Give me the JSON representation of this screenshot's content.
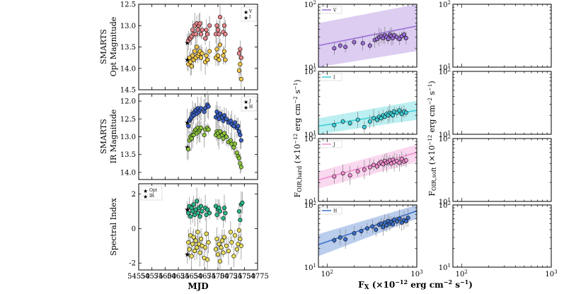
{
  "chart_data": [
    {
      "type": "scatter",
      "id": "opt-mag",
      "title": "",
      "ylabel_lines": [
        "SMARTS",
        "Opt Magnitude"
      ],
      "xlabel": "",
      "xlim": [
        54550,
        54775
      ],
      "ylim": [
        14.5,
        12.5
      ],
      "yticks": [
        12.5,
        13.0,
        13.5,
        14.0,
        14.5
      ],
      "legend": {
        "position": "top-right",
        "entries": [
          "V",
          "I"
        ]
      },
      "series": [
        {
          "name": "V",
          "color": "#e8858a",
          "x": [
            54642,
            54644,
            54646,
            54648,
            54650,
            54652,
            54654,
            54656,
            54658,
            54660,
            54662,
            54664,
            54666,
            54668,
            54670,
            54676,
            54678,
            54680,
            54684,
            54696,
            54698,
            54700,
            54702,
            54704,
            54710,
            54712,
            54714,
            54740,
            54742,
            54744
          ],
          "y": [
            13.4,
            13.35,
            13.3,
            13.3,
            13.25,
            13.1,
            13.2,
            13.0,
            13.2,
            12.95,
            13.1,
            13.0,
            12.95,
            13.2,
            13.1,
            13.3,
            13.1,
            13.2,
            13.0,
            13.2,
            13.0,
            13.1,
            13.2,
            12.8,
            13.15,
            13.0,
            13.2,
            13.65,
            13.55,
            13.75
          ]
        },
        {
          "name": "I",
          "color": "#f0c64a",
          "x": [
            54642,
            54644,
            54646,
            54648,
            54650,
            54652,
            54654,
            54656,
            54658,
            54660,
            54662,
            54664,
            54666,
            54668,
            54670,
            54676,
            54678,
            54680,
            54684,
            54696,
            54698,
            54700,
            54702,
            54704,
            54710,
            54712,
            54714,
            54740,
            54742,
            54744
          ],
          "y": [
            13.8,
            13.9,
            13.75,
            13.85,
            13.95,
            13.7,
            13.8,
            13.6,
            13.75,
            13.5,
            13.7,
            13.65,
            13.6,
            13.75,
            13.65,
            13.85,
            13.7,
            13.8,
            13.6,
            13.75,
            13.55,
            13.7,
            13.8,
            13.45,
            13.7,
            13.6,
            13.8,
            14.05,
            13.9,
            14.25
          ]
        }
      ]
    },
    {
      "type": "scatter",
      "id": "ir-mag",
      "ylabel_lines": [
        "SMARTS",
        "IR Magnitude"
      ],
      "xlim": [
        54550,
        54775
      ],
      "ylim": [
        14.2,
        11.8
      ],
      "yticks": [
        12.0,
        12.5,
        13.0,
        13.5,
        14.0
      ],
      "legend": {
        "position": "top-right",
        "entries": [
          "J",
          "H"
        ]
      },
      "series": [
        {
          "name": "H",
          "color": "#3a5fc0",
          "x": [
            54642,
            54644,
            54646,
            54648,
            54650,
            54652,
            54654,
            54656,
            54658,
            54660,
            54662,
            54664,
            54666,
            54668,
            54674,
            54676,
            54680,
            54682,
            54696,
            54698,
            54700,
            54702,
            54704,
            54708,
            54710,
            54712,
            54716,
            54720,
            54724,
            54726,
            54730,
            54732,
            54736,
            54738,
            54740,
            54742,
            54744
          ],
          "y": [
            12.6,
            12.7,
            12.55,
            12.5,
            12.45,
            12.35,
            12.4,
            12.3,
            12.25,
            12.35,
            12.2,
            12.3,
            12.25,
            12.2,
            12.3,
            12.2,
            12.1,
            12.15,
            12.45,
            12.3,
            12.4,
            12.5,
            12.35,
            12.45,
            12.55,
            12.4,
            12.5,
            12.6,
            12.55,
            12.65,
            12.7,
            12.6,
            12.75,
            12.7,
            12.85,
            12.95,
            13.1
          ]
        },
        {
          "name": "J",
          "color": "#8dc63f",
          "x": [
            54642,
            54644,
            54646,
            54648,
            54650,
            54652,
            54654,
            54656,
            54658,
            54660,
            54662,
            54664,
            54666,
            54668,
            54674,
            54676,
            54680,
            54682,
            54696,
            54698,
            54700,
            54702,
            54704,
            54708,
            54710,
            54712,
            54716,
            54720,
            54724,
            54726,
            54730,
            54732,
            54736,
            54738,
            54740,
            54742,
            54744
          ],
          "y": [
            13.3,
            13.35,
            13.1,
            13.0,
            13.05,
            12.95,
            12.95,
            12.85,
            12.8,
            12.9,
            12.75,
            12.85,
            12.8,
            12.75,
            12.95,
            12.8,
            12.75,
            12.8,
            12.95,
            12.85,
            12.9,
            13.0,
            12.85,
            12.95,
            13.05,
            12.9,
            13.0,
            13.15,
            13.1,
            13.2,
            13.3,
            13.2,
            13.45,
            13.55,
            13.6,
            13.75,
            13.85
          ]
        }
      ]
    },
    {
      "type": "scatter",
      "id": "spectral-index",
      "ylabel_lines": [
        "Spectral Index"
      ],
      "xlabel": "MJD",
      "xlim": [
        54550,
        54775
      ],
      "ylim": [
        -2.4,
        2.6
      ],
      "yticks": [
        -2,
        0,
        2
      ],
      "xticks": [
        54550,
        54575,
        54600,
        54625,
        54650,
        54675,
        54700,
        54725,
        54750,
        54775
      ],
      "legend": {
        "position": "top-left",
        "entries": [
          "Opt",
          "IR"
        ]
      },
      "series": [
        {
          "name": "Opt",
          "color": "#2bb48a",
          "x": [
            54642,
            54644,
            54646,
            54648,
            54650,
            54652,
            54654,
            54656,
            54658,
            54660,
            54662,
            54664,
            54666,
            54668,
            54670,
            54676,
            54678,
            54680,
            54684,
            54696,
            54698,
            54700,
            54702,
            54704,
            54710,
            54712,
            54714,
            54740,
            54742,
            54744,
            54746
          ],
          "y": [
            1.1,
            0.9,
            1.3,
            0.7,
            1.2,
            1.0,
            1.4,
            0.8,
            1.1,
            1.6,
            0.9,
            1.2,
            0.7,
            1.3,
            1.0,
            1.2,
            0.8,
            1.1,
            0.9,
            1.3,
            0.8,
            1.1,
            1.2,
            1.0,
            0.6,
            1.2,
            0.9,
            1.0,
            0.5,
            1.4,
            1.5
          ]
        },
        {
          "name": "IR",
          "color": "#e8dc5a",
          "x": [
            54642,
            54644,
            54646,
            54648,
            54650,
            54652,
            54654,
            54656,
            54658,
            54660,
            54662,
            54664,
            54666,
            54668,
            54670,
            54674,
            54676,
            54678,
            54680,
            54682,
            54696,
            54698,
            54700,
            54702,
            54704,
            54706,
            54708,
            54710,
            54712,
            54716,
            54720,
            54724,
            54726,
            54730,
            54732,
            54736,
            54738,
            54740,
            54742,
            54744
          ],
          "y": [
            -1.5,
            -0.8,
            -1.2,
            -0.4,
            -1.6,
            -0.9,
            -0.5,
            -1.3,
            -0.7,
            -1.1,
            -0.2,
            -0.9,
            -1.4,
            -0.6,
            -1.0,
            -1.7,
            -1.1,
            -0.3,
            -1.8,
            -0.8,
            -1.2,
            -0.6,
            -1.5,
            -0.9,
            -1.9,
            -1.1,
            -0.7,
            -1.4,
            -0.5,
            -1.0,
            -1.3,
            -0.2,
            -0.8,
            -1.6,
            -0.4,
            -1.2,
            -0.9,
            -0.1,
            -0.6,
            -1.0
          ]
        }
      ]
    },
    {
      "type": "scatter",
      "id": "corr-hard-V",
      "band": "V",
      "xscale": "log",
      "yscale": "log",
      "xlim": [
        80,
        1000
      ],
      "ylim": [
        10,
        100
      ],
      "legend": {
        "position": "top-left",
        "entries": [
          "V"
        ]
      },
      "fit_color": "#9b6fd6",
      "fit_line": {
        "x": [
          80,
          1000
        ],
        "y": [
          22,
          45
        ]
      },
      "fit_band_upper": [
        50,
        100
      ],
      "fit_band_lower": [
        10,
        18
      ],
      "points_color": "#9b6fd6",
      "x": [
        120,
        140,
        160,
        200,
        250,
        300,
        340,
        360,
        380,
        400,
        420,
        440,
        460,
        480,
        500,
        520,
        540,
        560,
        600,
        640,
        680,
        720,
        760
      ],
      "y": [
        20,
        22,
        21,
        25,
        24,
        22,
        27,
        28,
        30,
        31,
        29,
        32,
        30,
        28,
        33,
        31,
        29,
        32,
        30,
        28,
        31,
        33,
        29
      ]
    },
    {
      "type": "scatter",
      "id": "corr-hard-I",
      "band": "I",
      "xscale": "log",
      "yscale": "log",
      "xlim": [
        80,
        1000
      ],
      "ylim": [
        10,
        100
      ],
      "legend": {
        "position": "top-left",
        "entries": [
          "I"
        ]
      },
      "fit_color": "#3fd0d8",
      "fit_line": {
        "x": [
          80,
          1000
        ],
        "y": [
          13.5,
          24
        ]
      },
      "fit_band_upper": [
        18,
        34
      ],
      "fit_band_lower": [
        10,
        17
      ],
      "points_color": "#3fd0d8",
      "x": [
        120,
        150,
        180,
        220,
        260,
        300,
        330,
        360,
        380,
        400,
        420,
        440,
        460,
        480,
        500,
        520,
        540,
        560,
        600,
        640,
        680,
        720,
        760
      ],
      "y": [
        14,
        16,
        15,
        17,
        13,
        16,
        18,
        17,
        19,
        18,
        20,
        19,
        21,
        20,
        22,
        21,
        20,
        23,
        22,
        24,
        21,
        23,
        22
      ]
    },
    {
      "type": "scatter",
      "id": "corr-hard-J",
      "band": "J",
      "xscale": "log",
      "yscale": "log",
      "xlim": [
        80,
        1000
      ],
      "ylim": [
        10,
        100
      ],
      "legend": {
        "position": "top-left",
        "entries": [
          "J"
        ]
      },
      "fit_color": "#f08fd0",
      "fit_line": {
        "x": [
          80,
          1000
        ],
        "y": [
          22,
          60
        ]
      },
      "fit_band_upper": [
        30,
        80
      ],
      "fit_band_lower": [
        16,
        42
      ],
      "points_color": "#f08fd0",
      "x": [
        120,
        150,
        180,
        220,
        260,
        300,
        330,
        360,
        380,
        400,
        420,
        440,
        460,
        480,
        500,
        520,
        540,
        560,
        600,
        640,
        680,
        720,
        760
      ],
      "y": [
        25,
        28,
        26,
        30,
        32,
        35,
        38,
        36,
        40,
        42,
        39,
        44,
        41,
        43,
        45,
        40,
        46,
        42,
        44,
        41,
        47,
        43,
        45
      ]
    },
    {
      "type": "scatter",
      "id": "corr-hard-H",
      "band": "H",
      "xscale": "log",
      "yscale": "log",
      "xlim": [
        80,
        1000
      ],
      "ylim": [
        10,
        100
      ],
      "legend": {
        "position": "top-left",
        "entries": [
          "H"
        ]
      },
      "fit_color": "#3a6fc8",
      "fit_line": {
        "x": [
          80,
          1000
        ],
        "y": [
          23,
          80
        ]
      },
      "fit_band_upper": [
        34,
        100
      ],
      "fit_band_lower": [
        15,
        60
      ],
      "points_color": "#3a6fc8",
      "x": [
        120,
        140,
        160,
        200,
        240,
        280,
        320,
        350,
        380,
        400,
        420,
        440,
        460,
        480,
        500,
        520,
        540,
        560,
        600,
        640,
        680,
        720,
        760,
        800
      ],
      "y": [
        27,
        30,
        28,
        35,
        38,
        42,
        45,
        40,
        48,
        50,
        44,
        52,
        47,
        55,
        50,
        53,
        49,
        58,
        54,
        60,
        52,
        57,
        55,
        62
      ]
    },
    {
      "type": "scatter",
      "id": "corr-soft-empty",
      "xscale": "log",
      "yscale": "log",
      "xlim": [
        80,
        1000
      ],
      "ylim": [
        10,
        100
      ],
      "series": []
    }
  ],
  "labels": {
    "opt_ylabel_1": "SMARTS",
    "opt_ylabel_2": "Opt Magnitude",
    "ir_ylabel_1": "SMARTS",
    "ir_ylabel_2": "IR Magnitude",
    "si_ylabel": "Spectral Index",
    "mjd_label": "MJD",
    "hard_ylabel": "F",
    "hard_ylabel_sub": "OIR,hard",
    "hard_ylabel_rest": " (×10",
    "hard_ylabel_exp": "−12",
    "hard_ylabel_unit": " erg cm",
    "hard_ylabel_unit_exp": "−2",
    "hard_ylabel_s": " s",
    "hard_ylabel_s_exp": "−1",
    "hard_ylabel_close": ")",
    "soft_ylabel": "F",
    "soft_ylabel_sub": "OIR,soft",
    "fx_label": "F",
    "fx_label_sub": "X",
    "fx_label_rest": " (×10",
    "fx_label_exp": "−12",
    "fx_label_unit": " erg cm",
    "fx_label_unit_exp": "−2",
    "fx_label_s": " s",
    "fx_label_s_exp": "−1",
    "fx_label_close": ")",
    "tick_10": "10",
    "tick_1": "1",
    "tick_2": "2",
    "tick_3": "3"
  }
}
